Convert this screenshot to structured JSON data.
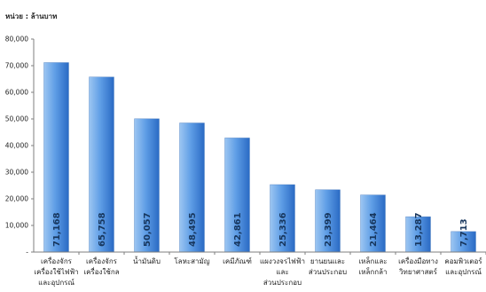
{
  "unit_label": "หน่วย : ล้านบาท",
  "colors": {
    "bar_light": "#9dc6f2",
    "bar_mid": "#5f9ee6",
    "bar_dark": "#2a6ac4",
    "axis": "#7f7f7f",
    "data_label": "#17365d"
  },
  "chart_data": {
    "type": "bar",
    "ylim": [
      0,
      80000
    ],
    "yticks": [
      0,
      10000,
      20000,
      30000,
      40000,
      50000,
      60000,
      70000,
      80000
    ],
    "ytick_labels": [
      "-",
      "10,000",
      "20,000",
      "30,000",
      "40,000",
      "50,000",
      "60,000",
      "70,000",
      "80,000"
    ],
    "grid": false,
    "title": "",
    "xlabel": "",
    "ylabel": "",
    "categories": [
      [
        "เครื่องจักร",
        "เครื่องใช้ไฟฟ้า",
        "และอุปกรณ์"
      ],
      [
        "เครื่องจักร",
        "เครื่องใช้กล"
      ],
      [
        "น้ำมันดิบ"
      ],
      [
        "โลหะสามัญ"
      ],
      [
        "เคมีภัณฑ์"
      ],
      [
        "แผงวงจรไฟฟ้า",
        "และ",
        "ส่วนประกอบ"
      ],
      [
        "ยานยนและ",
        "ส่วนประกอบ"
      ],
      [
        "เหล็กและ",
        "เหล็กกล้า"
      ],
      [
        "เครื่องมือทาง",
        "วิทยาศาสตร์"
      ],
      [
        "คอมพิวเตอร์",
        "และอุปกรณ์"
      ]
    ],
    "values": [
      71168,
      65758,
      50057,
      48495,
      42861,
      25336,
      23399,
      21464,
      13287,
      7713
    ],
    "data_labels": [
      "71,168",
      "65,758",
      "50,057",
      "48,495",
      "42,861",
      "25,336",
      "23,399",
      "21,464",
      "13,287",
      "7,713"
    ]
  }
}
